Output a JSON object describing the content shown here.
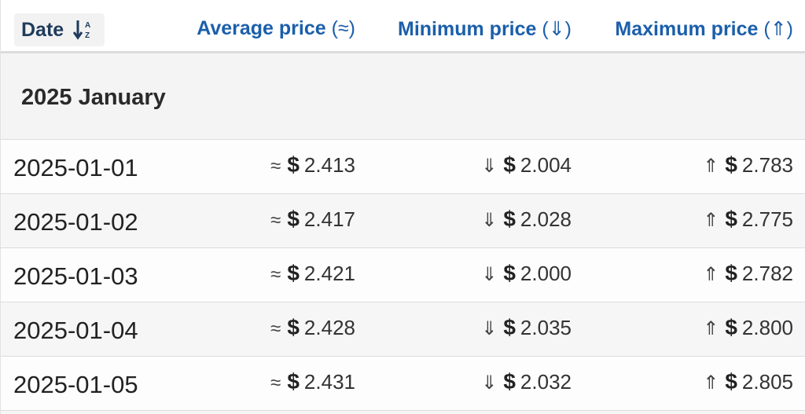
{
  "header": {
    "date_label": "Date",
    "sort_icon": "sort-alpha-down-icon",
    "average_label": "Average price",
    "average_symbol": "(≈)",
    "minimum_label": "Minimum price",
    "minimum_symbol": "(⇓)",
    "maximum_label": "Maximum price",
    "maximum_symbol": "(⇑)"
  },
  "group": {
    "title": "2025 January"
  },
  "symbols": {
    "approx": "≈",
    "down": "⇓",
    "up": "⇑",
    "currency": "$"
  },
  "rows": [
    {
      "date": "2025-01-01",
      "avg": "2.413",
      "min": "2.004",
      "max": "2.783"
    },
    {
      "date": "2025-01-02",
      "avg": "2.417",
      "min": "2.028",
      "max": "2.775"
    },
    {
      "date": "2025-01-03",
      "avg": "2.421",
      "min": "2.000",
      "max": "2.782"
    },
    {
      "date": "2025-01-04",
      "avg": "2.428",
      "min": "2.035",
      "max": "2.800"
    },
    {
      "date": "2025-01-05",
      "avg": "2.431",
      "min": "2.032",
      "max": "2.805"
    }
  ],
  "colors": {
    "header_link": "#1b5faa",
    "sort_text": "#1f3b5c",
    "month_bg": "#f4f4f4"
  }
}
